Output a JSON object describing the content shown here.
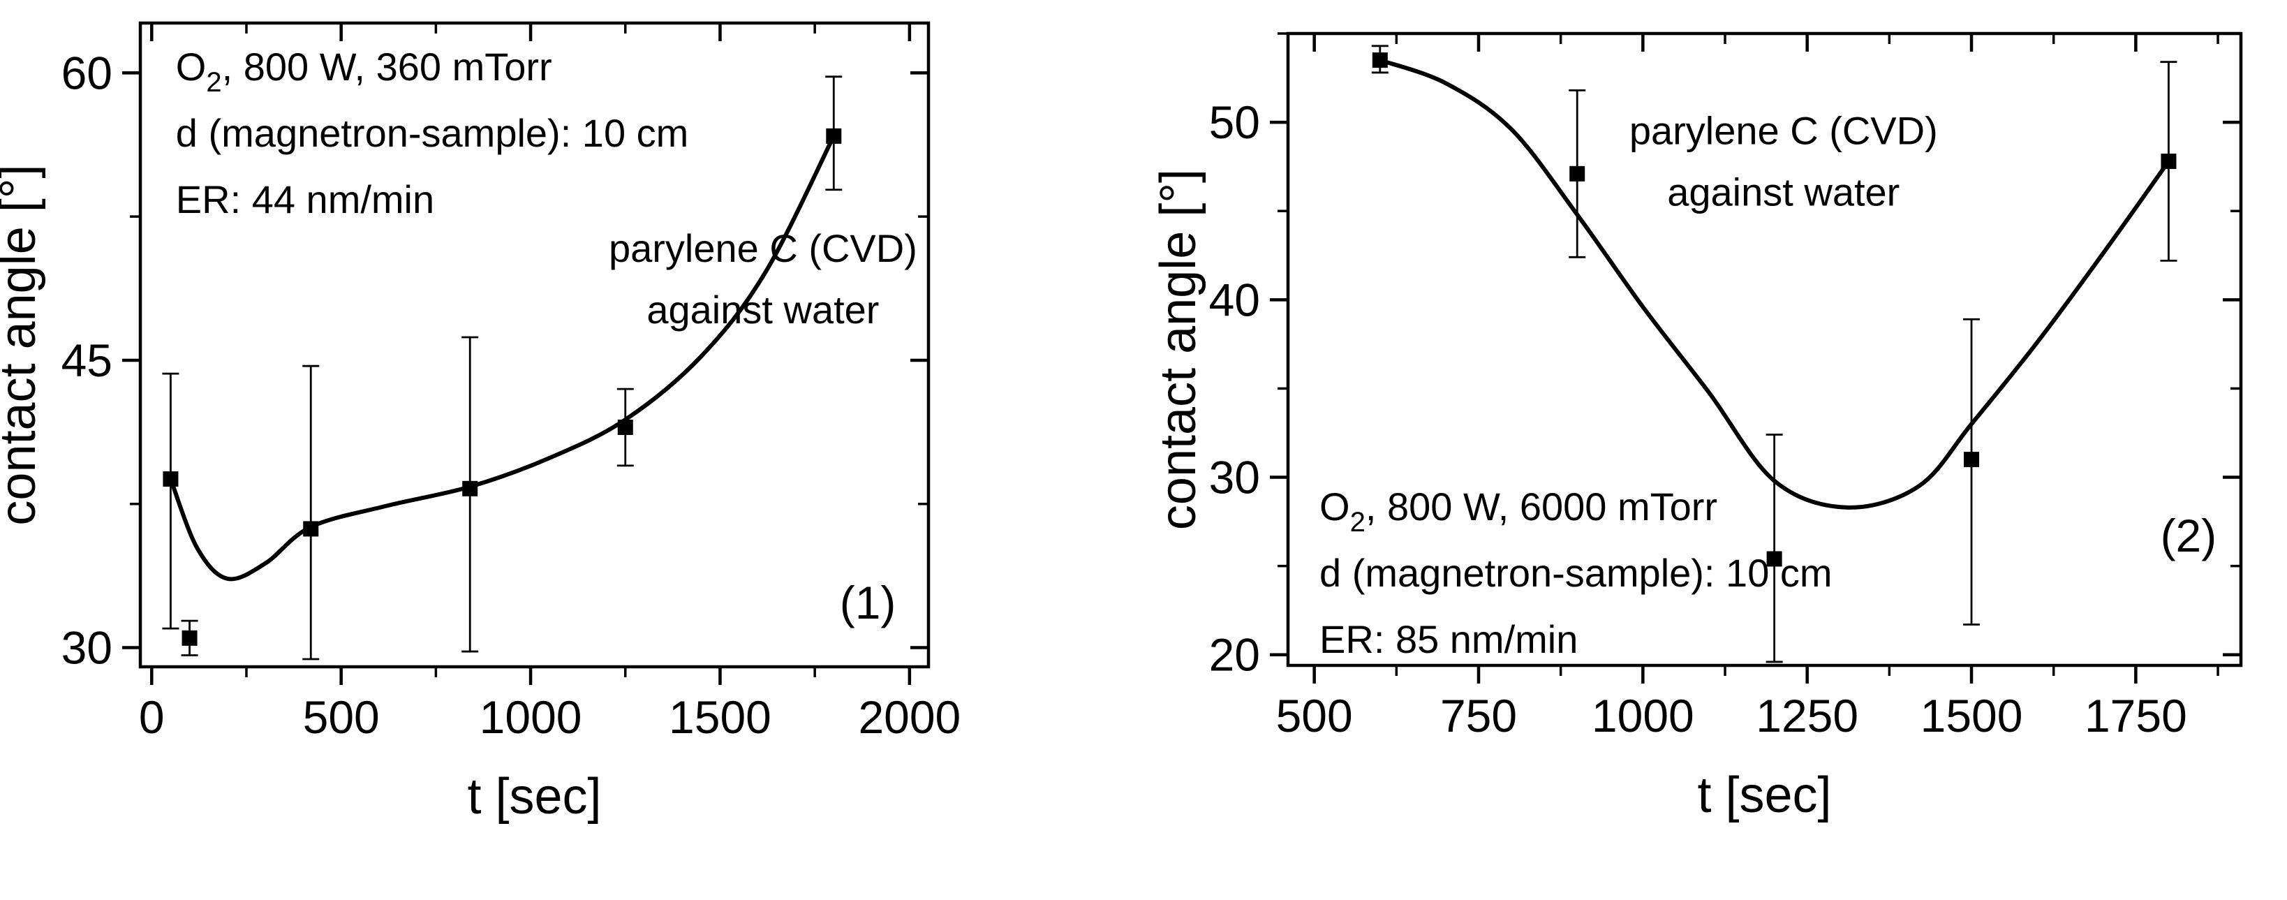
{
  "figure": {
    "background": "#ffffff",
    "ink": "#000000",
    "accent_green": "#00ef00"
  },
  "chart_data": [
    {
      "type": "scatter",
      "panel_label": "(1)",
      "panel_label_color": "#00ef00",
      "annotation_title_lines": [
        "parylene C (CVD)",
        "against water"
      ],
      "conditions_lines": [
        {
          "base": "O",
          "sub": "2",
          "rest": ", 800 W, 360 mTorr"
        },
        {
          "text": "d (magnetron-sample): 10 cm"
        },
        {
          "text": "ER: 44 nm/min"
        }
      ],
      "xlabel": "t [sec]",
      "ylabel": "contact angle [°]",
      "xlim": [
        -30,
        2050
      ],
      "ylim": [
        29,
        62.6
      ],
      "grid": false,
      "legend": "none",
      "marker": "filled-square",
      "x_major_ticks": [
        {
          "value": 0,
          "label": "0"
        },
        {
          "value": 500,
          "label": "500"
        },
        {
          "value": 1000,
          "label": "1000"
        },
        {
          "value": 1500,
          "label": "1500"
        },
        {
          "value": 2000,
          "label": "2000"
        }
      ],
      "x_minor_ticks": [
        250,
        750,
        1250,
        1750
      ],
      "y_major_ticks": [
        {
          "value": 30,
          "label": "30"
        },
        {
          "value": 45,
          "label": "45"
        },
        {
          "value": 60,
          "label": "60"
        }
      ],
      "y_minor_ticks": [
        37.5,
        52.5
      ],
      "points": [
        {
          "t": 50,
          "angle": 38.8,
          "err_low": 31.0,
          "err_high": 44.3
        },
        {
          "t": 100,
          "angle": 30.5,
          "err_low": 29.6,
          "err_high": 31.4
        },
        {
          "t": 420,
          "angle": 36.2,
          "err_low": 29.4,
          "err_high": 44.7
        },
        {
          "t": 840,
          "angle": 38.3,
          "err_low": 29.8,
          "err_high": 46.2
        },
        {
          "t": 1250,
          "angle": 41.5,
          "err_low": 39.5,
          "err_high": 43.5
        },
        {
          "t": 1800,
          "angle": 56.7,
          "err_low": 53.9,
          "err_high": 59.8
        }
      ],
      "fit_curve": [
        [
          50,
          38.8
        ],
        [
          120,
          35.2
        ],
        [
          200,
          33.6
        ],
        [
          300,
          34.4
        ],
        [
          420,
          36.3
        ],
        [
          620,
          37.4
        ],
        [
          840,
          38.4
        ],
        [
          1050,
          39.9
        ],
        [
          1250,
          41.9
        ],
        [
          1450,
          45.2
        ],
        [
          1620,
          49.6
        ],
        [
          1800,
          56.7
        ]
      ]
    },
    {
      "type": "scatter",
      "panel_label": "(2)",
      "panel_label_color": "#00ef00",
      "annotation_title_lines": [
        "parylene C (CVD)",
        "against water"
      ],
      "conditions_lines": [
        {
          "base": "O",
          "sub": "2",
          "rest": ", 800 W, 6000 mTorr"
        },
        {
          "text": "d (magnetron-sample): 10 cm"
        },
        {
          "text": "ER: 85 nm/min"
        }
      ],
      "xlabel": "t [sec]",
      "ylabel": "contact angle [°]",
      "xlim": [
        460,
        1910
      ],
      "ylim": [
        19.4,
        55
      ],
      "grid": false,
      "legend": "none",
      "marker": "filled-square",
      "x_major_ticks": [
        {
          "value": 500,
          "label": "500"
        },
        {
          "value": 750,
          "label": "750"
        },
        {
          "value": 1000,
          "label": "1000"
        },
        {
          "value": 1250,
          "label": "1250"
        },
        {
          "value": 1500,
          "label": "1500"
        },
        {
          "value": 1750,
          "label": "1750"
        }
      ],
      "x_minor_ticks": [
        625,
        875,
        1125,
        1375,
        1625,
        1875
      ],
      "y_major_ticks": [
        {
          "value": 20,
          "label": "20"
        },
        {
          "value": 30,
          "label": "30"
        },
        {
          "value": 40,
          "label": "40"
        },
        {
          "value": 50,
          "label": "50"
        }
      ],
      "y_minor_ticks": [
        25,
        35,
        45,
        55
      ],
      "points": [
        {
          "t": 600,
          "angle": 53.5,
          "err_low": 52.8,
          "err_high": 54.3
        },
        {
          "t": 900,
          "angle": 47.1,
          "err_low": 42.4,
          "err_high": 51.8
        },
        {
          "t": 1200,
          "angle": 25.4,
          "err_low": 19.6,
          "err_high": 32.4
        },
        {
          "t": 1500,
          "angle": 31.0,
          "err_low": 21.7,
          "err_high": 38.9
        },
        {
          "t": 1800,
          "angle": 47.8,
          "err_low": 42.2,
          "err_high": 53.4
        }
      ],
      "fit_curve": [
        [
          600,
          53.5
        ],
        [
          700,
          52.2
        ],
        [
          800,
          49.6
        ],
        [
          900,
          44.8
        ],
        [
          1000,
          39.6
        ],
        [
          1100,
          34.8
        ],
        [
          1200,
          29.8
        ],
        [
          1310,
          28.3
        ],
        [
          1420,
          29.5
        ],
        [
          1500,
          33.0
        ],
        [
          1600,
          37.6
        ],
        [
          1700,
          42.6
        ],
        [
          1800,
          47.8
        ]
      ]
    }
  ]
}
